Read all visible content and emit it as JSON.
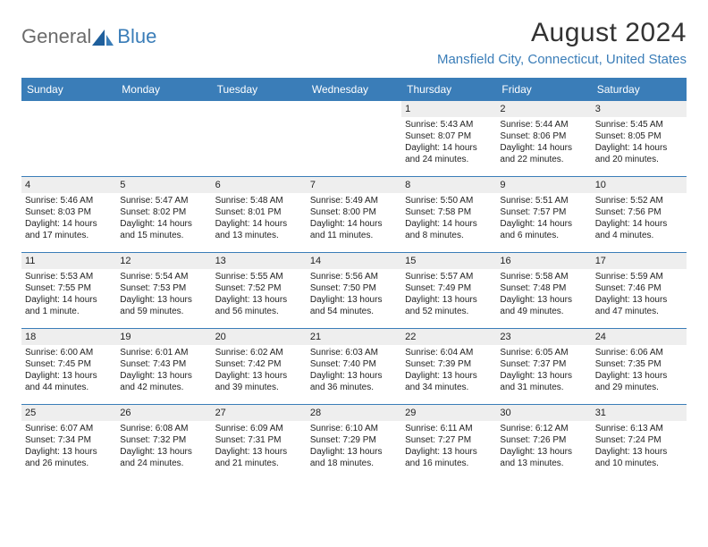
{
  "logo": {
    "general": "General",
    "blue": "Blue"
  },
  "title": {
    "month_year": "August 2024",
    "location": "Mansfield City, Connecticut, United States"
  },
  "colors": {
    "accent": "#3a7db8",
    "logo_grey": "#6b6b6b",
    "daynum_bg": "#eeeeee",
    "text": "#222222"
  },
  "day_headers": [
    "Sunday",
    "Monday",
    "Tuesday",
    "Wednesday",
    "Thursday",
    "Friday",
    "Saturday"
  ],
  "weeks": [
    [
      {
        "empty": true
      },
      {
        "empty": true
      },
      {
        "empty": true
      },
      {
        "empty": true
      },
      {
        "n": "1",
        "sunrise": "Sunrise: 5:43 AM",
        "sunset": "Sunset: 8:07 PM",
        "day1": "Daylight: 14 hours",
        "day2": "and 24 minutes."
      },
      {
        "n": "2",
        "sunrise": "Sunrise: 5:44 AM",
        "sunset": "Sunset: 8:06 PM",
        "day1": "Daylight: 14 hours",
        "day2": "and 22 minutes."
      },
      {
        "n": "3",
        "sunrise": "Sunrise: 5:45 AM",
        "sunset": "Sunset: 8:05 PM",
        "day1": "Daylight: 14 hours",
        "day2": "and 20 minutes."
      }
    ],
    [
      {
        "n": "4",
        "sunrise": "Sunrise: 5:46 AM",
        "sunset": "Sunset: 8:03 PM",
        "day1": "Daylight: 14 hours",
        "day2": "and 17 minutes."
      },
      {
        "n": "5",
        "sunrise": "Sunrise: 5:47 AM",
        "sunset": "Sunset: 8:02 PM",
        "day1": "Daylight: 14 hours",
        "day2": "and 15 minutes."
      },
      {
        "n": "6",
        "sunrise": "Sunrise: 5:48 AM",
        "sunset": "Sunset: 8:01 PM",
        "day1": "Daylight: 14 hours",
        "day2": "and 13 minutes."
      },
      {
        "n": "7",
        "sunrise": "Sunrise: 5:49 AM",
        "sunset": "Sunset: 8:00 PM",
        "day1": "Daylight: 14 hours",
        "day2": "and 11 minutes."
      },
      {
        "n": "8",
        "sunrise": "Sunrise: 5:50 AM",
        "sunset": "Sunset: 7:58 PM",
        "day1": "Daylight: 14 hours",
        "day2": "and 8 minutes."
      },
      {
        "n": "9",
        "sunrise": "Sunrise: 5:51 AM",
        "sunset": "Sunset: 7:57 PM",
        "day1": "Daylight: 14 hours",
        "day2": "and 6 minutes."
      },
      {
        "n": "10",
        "sunrise": "Sunrise: 5:52 AM",
        "sunset": "Sunset: 7:56 PM",
        "day1": "Daylight: 14 hours",
        "day2": "and 4 minutes."
      }
    ],
    [
      {
        "n": "11",
        "sunrise": "Sunrise: 5:53 AM",
        "sunset": "Sunset: 7:55 PM",
        "day1": "Daylight: 14 hours",
        "day2": "and 1 minute."
      },
      {
        "n": "12",
        "sunrise": "Sunrise: 5:54 AM",
        "sunset": "Sunset: 7:53 PM",
        "day1": "Daylight: 13 hours",
        "day2": "and 59 minutes."
      },
      {
        "n": "13",
        "sunrise": "Sunrise: 5:55 AM",
        "sunset": "Sunset: 7:52 PM",
        "day1": "Daylight: 13 hours",
        "day2": "and 56 minutes."
      },
      {
        "n": "14",
        "sunrise": "Sunrise: 5:56 AM",
        "sunset": "Sunset: 7:50 PM",
        "day1": "Daylight: 13 hours",
        "day2": "and 54 minutes."
      },
      {
        "n": "15",
        "sunrise": "Sunrise: 5:57 AM",
        "sunset": "Sunset: 7:49 PM",
        "day1": "Daylight: 13 hours",
        "day2": "and 52 minutes."
      },
      {
        "n": "16",
        "sunrise": "Sunrise: 5:58 AM",
        "sunset": "Sunset: 7:48 PM",
        "day1": "Daylight: 13 hours",
        "day2": "and 49 minutes."
      },
      {
        "n": "17",
        "sunrise": "Sunrise: 5:59 AM",
        "sunset": "Sunset: 7:46 PM",
        "day1": "Daylight: 13 hours",
        "day2": "and 47 minutes."
      }
    ],
    [
      {
        "n": "18",
        "sunrise": "Sunrise: 6:00 AM",
        "sunset": "Sunset: 7:45 PM",
        "day1": "Daylight: 13 hours",
        "day2": "and 44 minutes."
      },
      {
        "n": "19",
        "sunrise": "Sunrise: 6:01 AM",
        "sunset": "Sunset: 7:43 PM",
        "day1": "Daylight: 13 hours",
        "day2": "and 42 minutes."
      },
      {
        "n": "20",
        "sunrise": "Sunrise: 6:02 AM",
        "sunset": "Sunset: 7:42 PM",
        "day1": "Daylight: 13 hours",
        "day2": "and 39 minutes."
      },
      {
        "n": "21",
        "sunrise": "Sunrise: 6:03 AM",
        "sunset": "Sunset: 7:40 PM",
        "day1": "Daylight: 13 hours",
        "day2": "and 36 minutes."
      },
      {
        "n": "22",
        "sunrise": "Sunrise: 6:04 AM",
        "sunset": "Sunset: 7:39 PM",
        "day1": "Daylight: 13 hours",
        "day2": "and 34 minutes."
      },
      {
        "n": "23",
        "sunrise": "Sunrise: 6:05 AM",
        "sunset": "Sunset: 7:37 PM",
        "day1": "Daylight: 13 hours",
        "day2": "and 31 minutes."
      },
      {
        "n": "24",
        "sunrise": "Sunrise: 6:06 AM",
        "sunset": "Sunset: 7:35 PM",
        "day1": "Daylight: 13 hours",
        "day2": "and 29 minutes."
      }
    ],
    [
      {
        "n": "25",
        "sunrise": "Sunrise: 6:07 AM",
        "sunset": "Sunset: 7:34 PM",
        "day1": "Daylight: 13 hours",
        "day2": "and 26 minutes."
      },
      {
        "n": "26",
        "sunrise": "Sunrise: 6:08 AM",
        "sunset": "Sunset: 7:32 PM",
        "day1": "Daylight: 13 hours",
        "day2": "and 24 minutes."
      },
      {
        "n": "27",
        "sunrise": "Sunrise: 6:09 AM",
        "sunset": "Sunset: 7:31 PM",
        "day1": "Daylight: 13 hours",
        "day2": "and 21 minutes."
      },
      {
        "n": "28",
        "sunrise": "Sunrise: 6:10 AM",
        "sunset": "Sunset: 7:29 PM",
        "day1": "Daylight: 13 hours",
        "day2": "and 18 minutes."
      },
      {
        "n": "29",
        "sunrise": "Sunrise: 6:11 AM",
        "sunset": "Sunset: 7:27 PM",
        "day1": "Daylight: 13 hours",
        "day2": "and 16 minutes."
      },
      {
        "n": "30",
        "sunrise": "Sunrise: 6:12 AM",
        "sunset": "Sunset: 7:26 PM",
        "day1": "Daylight: 13 hours",
        "day2": "and 13 minutes."
      },
      {
        "n": "31",
        "sunrise": "Sunrise: 6:13 AM",
        "sunset": "Sunset: 7:24 PM",
        "day1": "Daylight: 13 hours",
        "day2": "and 10 minutes."
      }
    ]
  ]
}
